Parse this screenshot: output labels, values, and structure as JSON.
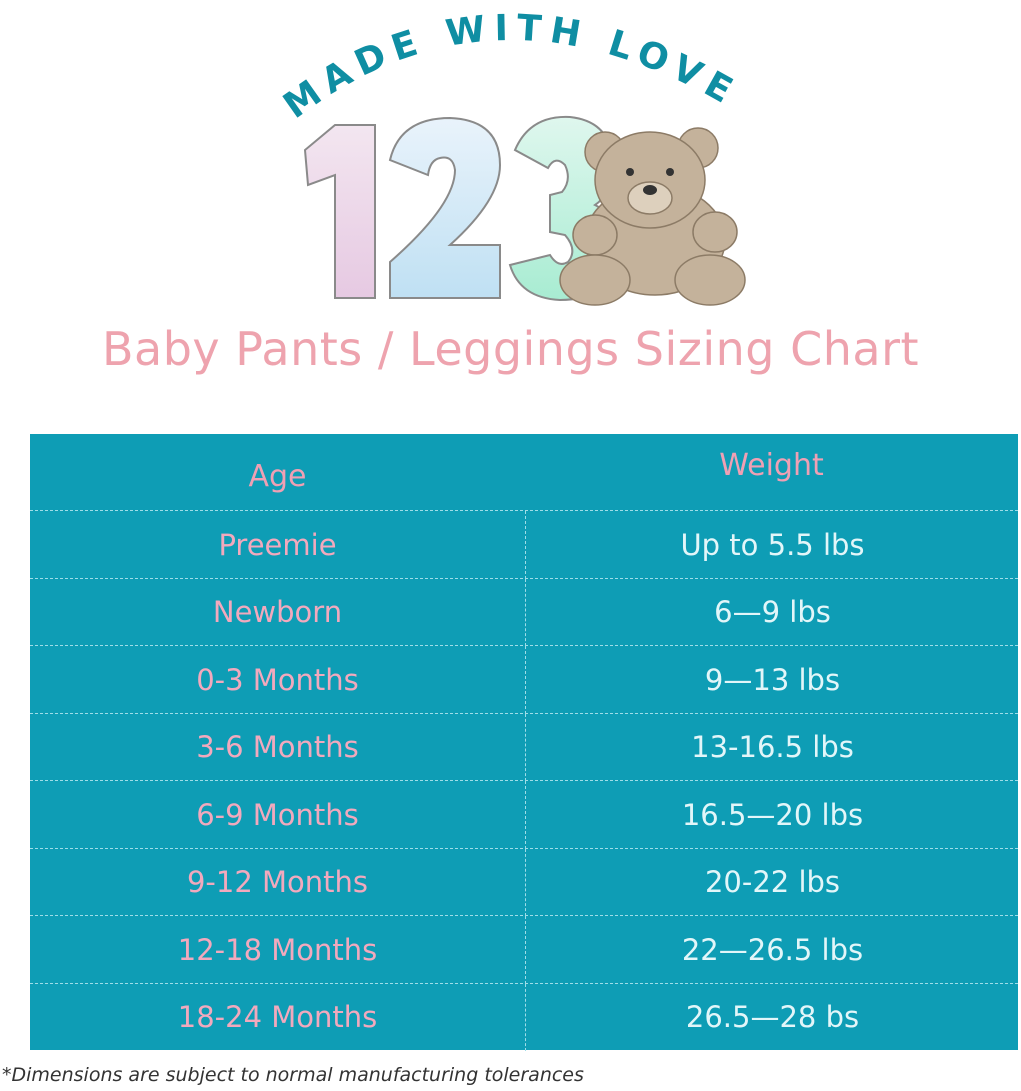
{
  "logo": {
    "arc_text": "MADE WITH LOVE",
    "digits": "123",
    "mascot_icon": "teddy-bear-icon",
    "arc_color": "#0f8ea3"
  },
  "title": "Baby Pants / Leggings Sizing Chart",
  "table": {
    "headers": {
      "age": "Age",
      "weight": "Weight"
    },
    "rows": [
      {
        "age": "Preemie",
        "weight": "Up to 5.5 lbs"
      },
      {
        "age": "Newborn",
        "weight": "6—9 lbs"
      },
      {
        "age": "0-3 Months",
        "weight": "9—13 lbs"
      },
      {
        "age": "3-6 Months",
        "weight": "13-16.5 lbs"
      },
      {
        "age": "6-9 Months",
        "weight": "16.5—20 lbs"
      },
      {
        "age": "9-12 Months",
        "weight": "20-22 lbs"
      },
      {
        "age": "12-18 Months",
        "weight": "22—26.5 lbs"
      },
      {
        "age": "18-24 Months",
        "weight": "26.5—28 bs"
      }
    ],
    "colors": {
      "background": "#0e9db5",
      "age_text": "#f2a9bd",
      "weight_text": "#e2f6f9"
    }
  },
  "footnote": "*Dimensions are subject to normal manufacturing tolerances"
}
